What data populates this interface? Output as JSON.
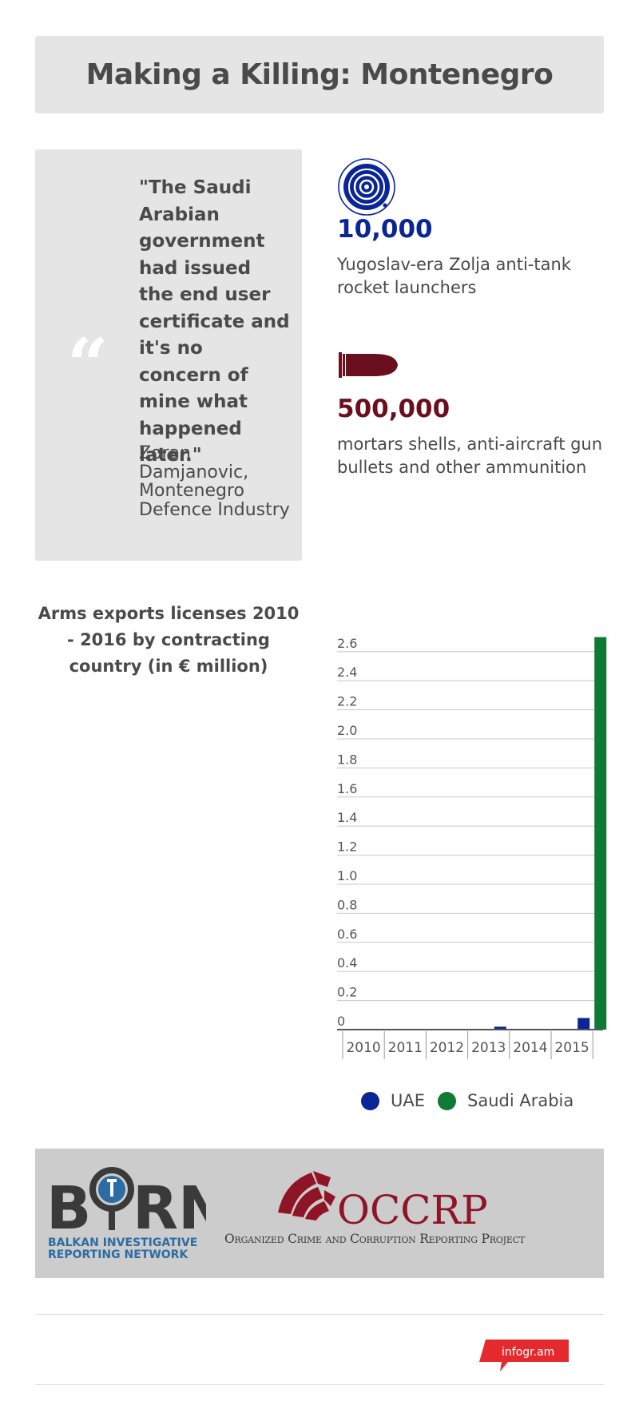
{
  "title": "Making a Killing: Montenegro",
  "quote": {
    "mark": "“",
    "text": "\"The Saudi Arabian government had issued the end user certificate and it's no concern of mine what happened later.\"",
    "author": "Zoran Damjanovic, Montenegro Defence Industry"
  },
  "stats": [
    {
      "number": "10,000",
      "description": "Yugoslav-era Zolja anti-tank rocket launchers",
      "color": "#0a2596",
      "icon": "target-icon"
    },
    {
      "number": "500,000",
      "description": "mortars shells, anti-aircraft gun bullets and other ammunition",
      "color": "#6b0f1f",
      "icon": "bullet-icon"
    }
  ],
  "chart_data": {
    "type": "bar",
    "title": "Arms exports licenses 2010 - 2016 by contracting country (in € million)",
    "categories": [
      "2010",
      "2011",
      "2012",
      "2013",
      "2014",
      "2015"
    ],
    "series": [
      {
        "name": "UAE",
        "color": "#0a2596",
        "values": [
          0,
          0,
          0,
          0.02,
          0,
          0.08
        ]
      },
      {
        "name": "Saudi Arabia",
        "color": "#0e7a34",
        "values": [
          0,
          0,
          0,
          0,
          0,
          2.7
        ]
      }
    ],
    "y_ticks": [
      "0",
      "0.2",
      "0.4",
      "0.6",
      "0.8",
      "1.0",
      "1.2",
      "1.4",
      "1.6",
      "1.8",
      "2.0",
      "2.2",
      "2.4",
      "2.6"
    ],
    "ylim": [
      0,
      2.7
    ],
    "grid": true,
    "legend": "bottom"
  },
  "logos": {
    "birn": "BIRN",
    "birn_subtitle_1": "BALKAN INVESTIGATIVE",
    "birn_subtitle_2": "REPORTING NETWORK",
    "occrp": "OCCRP",
    "occrp_subtitle": "Organized Crime and Corruption Reporting Project"
  },
  "footer": {
    "badge": "infogr.am"
  }
}
